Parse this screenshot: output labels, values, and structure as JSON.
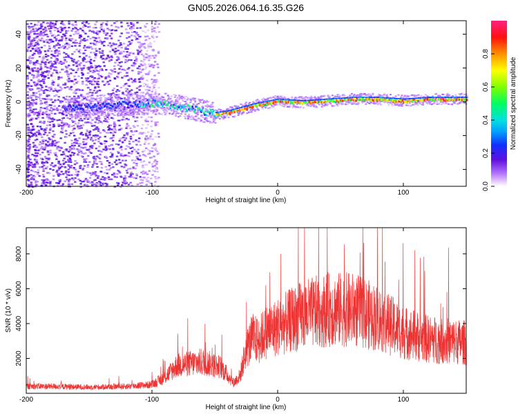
{
  "title": "GN05.2026.064.16.35.G26",
  "chart_data": [
    {
      "type": "heatmap",
      "title": "GN05.2026.064.16.35.G26",
      "xlabel": "Height of straight line (km)",
      "ylabel": "Frequency (Hz)",
      "xlim": [
        -200,
        150
      ],
      "ylim": [
        -50,
        48
      ],
      "xticks": [
        -200,
        -100,
        0,
        100
      ],
      "yticks": [
        -40,
        -20,
        0,
        20,
        40
      ],
      "colorbar": {
        "label": "Normalized spectral amplitude",
        "range": [
          0,
          1
        ],
        "ticks": [
          "0.0",
          "0.2",
          "0.4",
          "0.6",
          "0.8"
        ]
      },
      "ridge": {
        "x": [
          -160,
          -140,
          -120,
          -100,
          -80,
          -60,
          -50,
          -40,
          -20,
          0,
          20,
          40,
          60,
          80,
          100,
          120,
          150
        ],
        "y": [
          -3,
          -2,
          -1,
          0,
          -2,
          -5,
          -7,
          -6,
          -2,
          1,
          0,
          1,
          2,
          2,
          1,
          2,
          2
        ]
      }
    },
    {
      "type": "line",
      "xlabel": "Height of straight line (km)",
      "ylabel": "SNR (10 * v/v)",
      "xlim": [
        -200,
        150
      ],
      "ylim": [
        0,
        9500
      ],
      "xticks": [
        -200,
        -100,
        0,
        100
      ],
      "yticks": [
        2000,
        4000,
        6000,
        8000
      ],
      "color": "#ee3333",
      "envelope": {
        "x": [
          -200,
          -180,
          -150,
          -120,
          -100,
          -90,
          -80,
          -60,
          -45,
          -35,
          -30,
          -25,
          -20,
          -15,
          -10,
          0,
          20,
          40,
          60,
          80,
          100,
          120,
          150
        ],
        "y": [
          400,
          400,
          350,
          400,
          500,
          900,
          1600,
          1800,
          1500,
          600,
          1000,
          2500,
          3200,
          3000,
          3500,
          3800,
          4500,
          4800,
          4800,
          4300,
          3500,
          3100,
          2900
        ]
      }
    }
  ]
}
